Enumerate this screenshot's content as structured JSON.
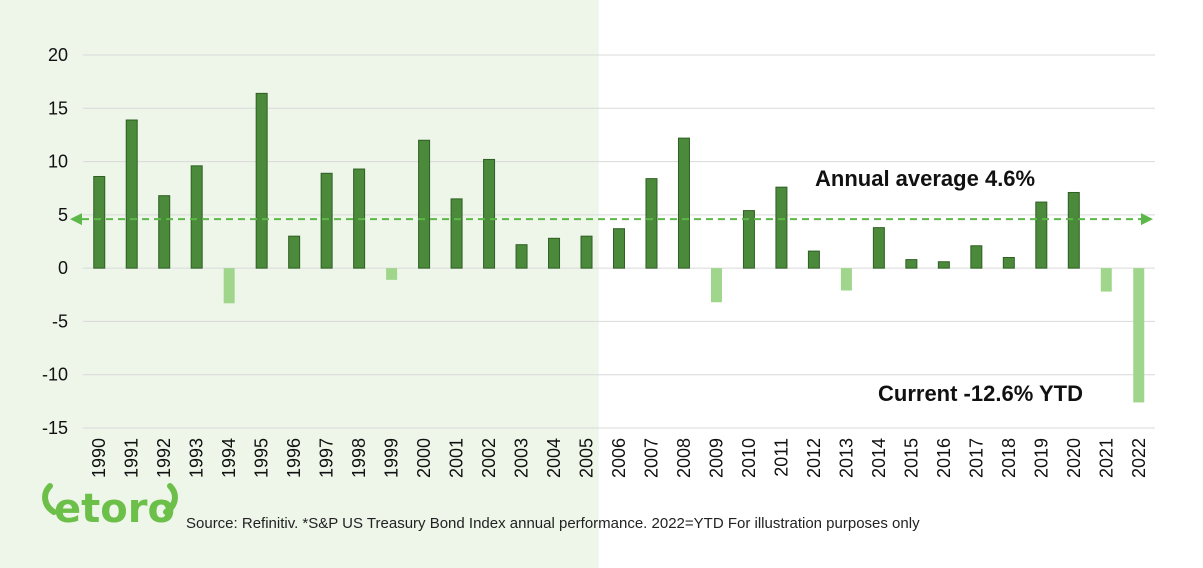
{
  "chart_data": {
    "type": "bar",
    "title": "",
    "xlabel": "",
    "ylabel": "",
    "ylim": [
      -15,
      20
    ],
    "yticks": [
      20,
      15,
      10,
      5,
      0,
      -5,
      -10,
      -15
    ],
    "grid": true,
    "categories": [
      "1990",
      "1991",
      "1992",
      "1993",
      "1994",
      "1995",
      "1996",
      "1997",
      "1998",
      "1999",
      "2000",
      "2001",
      "2002",
      "2003",
      "2004",
      "2005",
      "2006",
      "2007",
      "2008",
      "2009",
      "2010",
      "2011",
      "2012",
      "2013",
      "2014",
      "2015",
      "2016",
      "2017",
      "2018",
      "2019",
      "2020",
      "2021",
      "2022"
    ],
    "values": [
      8.6,
      13.9,
      6.8,
      9.6,
      -3.3,
      16.4,
      3.0,
      8.9,
      9.3,
      -1.1,
      12.0,
      6.5,
      10.2,
      2.2,
      2.8,
      3.0,
      3.7,
      8.4,
      12.2,
      -3.2,
      5.4,
      7.6,
      1.6,
      -2.1,
      3.8,
      0.8,
      0.6,
      2.1,
      1.0,
      6.2,
      7.1,
      -2.2,
      -12.6
    ],
    "average": 4.6,
    "annotations": {
      "average_label": "Annual average 4.6%",
      "current_label": "Current -12.6% YTD"
    },
    "highlight_range": [
      "1990",
      "2005"
    ],
    "colors": {
      "positive": "#4a8a3a",
      "positive_border": "#2f5f24",
      "negative": "#9fd68b",
      "average_line": "#5cb848",
      "highlight_bg": "#eef6ea",
      "grid": "#d9d9d9"
    }
  },
  "logo": {
    "text": "etoro",
    "color": "#6cc04a"
  },
  "source": "Source: Refinitiv. *S&P US Treasury Bond Index annual performance. 2022=YTD For illustration purposes only"
}
